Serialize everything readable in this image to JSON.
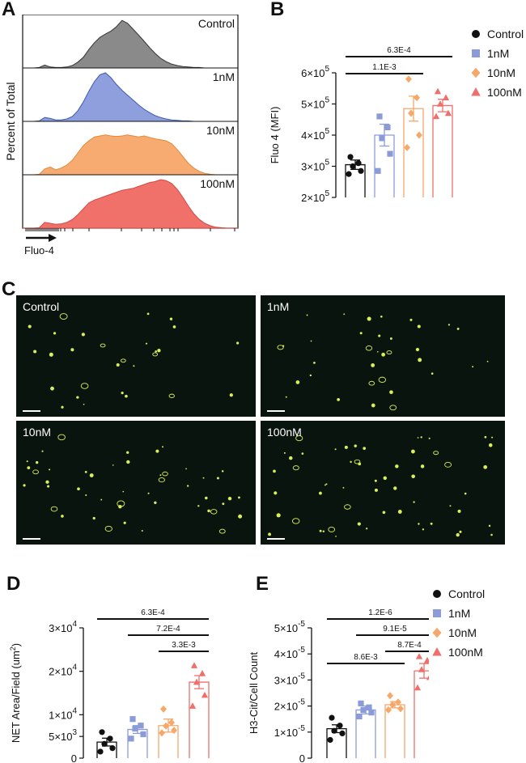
{
  "panels": {
    "A": "A",
    "B": "B",
    "C": "C",
    "D": "D",
    "E": "E"
  },
  "legend": [
    {
      "label": "Control",
      "color": "#111111",
      "shape": "circle"
    },
    {
      "label": "1nM",
      "color": "#8b9bd9",
      "shape": "square"
    },
    {
      "label": "10nM",
      "color": "#f5a86a",
      "shape": "diamond"
    },
    {
      "label": "100nM",
      "color": "#ef6f6a",
      "shape": "triangle"
    }
  ],
  "colors": {
    "control": "#111111",
    "nM1": "#8b9bd9",
    "nM10": "#f5a86a",
    "nM100": "#ef6f6a",
    "fill_control": "#8a8a8a",
    "fill_1": "#8f9fde",
    "fill_10": "#f7ab70",
    "fill_100": "#ef7169",
    "micro_bg": "#0a140e",
    "micro_spot": "#d8ef5a"
  },
  "chart_data": [
    {
      "id": "A",
      "type": "area",
      "ylabel": "Percent of Total",
      "xlabel": "Fluo-4",
      "series": [
        {
          "name": "Control",
          "values": [
            0,
            0,
            0,
            1,
            6,
            2,
            1,
            1,
            2,
            5,
            12,
            22,
            38,
            52,
            63,
            70,
            76,
            85,
            98,
            92,
            80,
            68,
            55,
            42,
            30,
            20,
            13,
            8,
            5,
            3,
            2,
            1,
            1,
            0,
            0,
            0,
            0,
            0,
            0,
            0
          ]
        },
        {
          "name": "1nM",
          "values": [
            0,
            0,
            0,
            1,
            8,
            6,
            3,
            3,
            5,
            10,
            22,
            40,
            62,
            82,
            96,
            100,
            90,
            76,
            64,
            54,
            44,
            34,
            25,
            18,
            12,
            8,
            5,
            3,
            2,
            1,
            1,
            0,
            0,
            0,
            0,
            0,
            0,
            0,
            0,
            0
          ]
        },
        {
          "name": "10nM",
          "values": [
            0,
            0,
            0,
            1,
            12,
            16,
            10,
            14,
            20,
            30,
            45,
            60,
            70,
            78,
            80,
            82,
            80,
            79,
            80,
            82,
            80,
            78,
            80,
            77,
            74,
            72,
            70,
            64,
            52,
            38,
            24,
            14,
            7,
            3,
            1,
            0,
            0,
            0,
            0,
            0
          ]
        },
        {
          "name": "100nM",
          "values": [
            0,
            0,
            0,
            1,
            12,
            10,
            8,
            9,
            12,
            18,
            28,
            40,
            52,
            58,
            62,
            66,
            70,
            74,
            78,
            80,
            82,
            86,
            90,
            94,
            96,
            100,
            98,
            92,
            80,
            64,
            46,
            30,
            18,
            10,
            5,
            2,
            1,
            0,
            0,
            0
          ]
        }
      ]
    },
    {
      "id": "B",
      "type": "bar",
      "categories": [
        "Control",
        "1nM",
        "10nM",
        "100nM"
      ],
      "ylabel": "Fluo 4 (MFI)",
      "ylim": [
        200000,
        600000
      ],
      "yticks": [
        {
          "value": 200000,
          "base": "2×10",
          "exp": "5"
        },
        {
          "value": 300000,
          "base": "3×10",
          "exp": "5"
        },
        {
          "value": 400000,
          "base": "4×10",
          "exp": "5"
        },
        {
          "value": 500000,
          "base": "5×10",
          "exp": "5"
        },
        {
          "value": 600000,
          "base": "6×10",
          "exp": "5"
        }
      ],
      "means": [
        305000,
        400000,
        485000,
        495000
      ],
      "sem": [
        15000,
        35000,
        40000,
        20000
      ],
      "points": [
        [
          330000,
          310000,
          300000,
          285000,
          275000
        ],
        [
          460000,
          425000,
          390000,
          340000,
          285000
        ],
        [
          580000,
          520000,
          470000,
          400000,
          360000
        ],
        [
          540000,
          520000,
          500000,
          470000,
          460000
        ]
      ],
      "comparisons": [
        {
          "from": 0,
          "to": 3,
          "label": "6.3E-4"
        },
        {
          "from": 0,
          "to": 2,
          "label": "1.1E-3"
        }
      ]
    },
    {
      "id": "D",
      "type": "bar",
      "categories": [
        "Control",
        "1nM",
        "10nM",
        "100nM"
      ],
      "ylabel_base": "NET Area/Field (um",
      "ylabel_sup": "2",
      "ylabel_end": ")",
      "ylim": [
        0,
        30000
      ],
      "yticks": [
        {
          "value": 0,
          "base": "0",
          "exp": ""
        },
        {
          "value": 5000,
          "base": "5×10",
          "exp": "3"
        },
        {
          "value": 10000,
          "base": "1×10",
          "exp": "4"
        },
        {
          "value": 20000,
          "base": "2×10",
          "exp": "4"
        },
        {
          "value": 30000,
          "base": "3×10",
          "exp": "4"
        }
      ],
      "means": [
        3700,
        6600,
        7500,
        17500
      ],
      "sem": [
        900,
        900,
        1500,
        1500
      ],
      "points": [
        [
          6000,
          4500,
          3300,
          2300,
          1500
        ],
        [
          9000,
          7500,
          6800,
          5500,
          4500
        ],
        [
          11300,
          8200,
          7400,
          6400,
          5800
        ],
        [
          21300,
          19500,
          17500,
          14500,
          12000
        ]
      ],
      "comparisons": [
        {
          "from": 0,
          "to": 3,
          "label": "6.3E-4"
        },
        {
          "from": 1,
          "to": 3,
          "label": "7.2E-4"
        },
        {
          "from": 2,
          "to": 3,
          "label": "3.3E-3"
        }
      ]
    },
    {
      "id": "E",
      "type": "bar",
      "categories": [
        "Control",
        "1nM",
        "10nM",
        "100nM"
      ],
      "ylabel": "H3-Cit/Cell Count",
      "ylim": [
        0,
        5e-05
      ],
      "yticks": [
        {
          "value": 0,
          "base": "0",
          "exp": ""
        },
        {
          "value": 1e-05,
          "base": "1×10",
          "exp": "-5"
        },
        {
          "value": 2e-05,
          "base": "2×10",
          "exp": "-5"
        },
        {
          "value": 3e-05,
          "base": "3×10",
          "exp": "-5"
        },
        {
          "value": 4e-05,
          "base": "4×10",
          "exp": "-5"
        },
        {
          "value": 5e-05,
          "base": "5×10",
          "exp": "-5"
        }
      ],
      "means": [
        1.13e-05,
        1.85e-05,
        2.05e-05,
        3.35e-05
      ],
      "sem": [
        1.5e-06,
        1.5e-06,
        1.2e-06,
        2.8e-06
      ],
      "points": [
        [
          1.55e-05,
          1.25e-05,
          1.05e-05,
          9.5e-06,
          7e-06
        ],
        [
          2.1e-05,
          1.95e-05,
          1.85e-05,
          1.75e-05,
          1.6e-05
        ],
        [
          2.4e-05,
          2.15e-05,
          2.05e-05,
          1.9e-05,
          1.85e-05
        ],
        [
          3.9e-05,
          3.75e-05,
          3.4e-05,
          3.1e-05,
          2.7e-05
        ]
      ],
      "comparisons": [
        {
          "from": 0,
          "to": 3,
          "label": "1.2E-6"
        },
        {
          "from": 1,
          "to": 3,
          "label": "9.1E-5"
        },
        {
          "from": 2,
          "to": 3,
          "label": "8.7E-4"
        },
        {
          "from": 0,
          "to": 2,
          "label": "8.6E-3"
        }
      ]
    }
  ],
  "micrographs": [
    {
      "label": "Control",
      "spots": 28
    },
    {
      "label": "1nM",
      "spots": 34
    },
    {
      "label": "10nM",
      "spots": 48
    },
    {
      "label": "100nM",
      "spots": 58
    }
  ]
}
